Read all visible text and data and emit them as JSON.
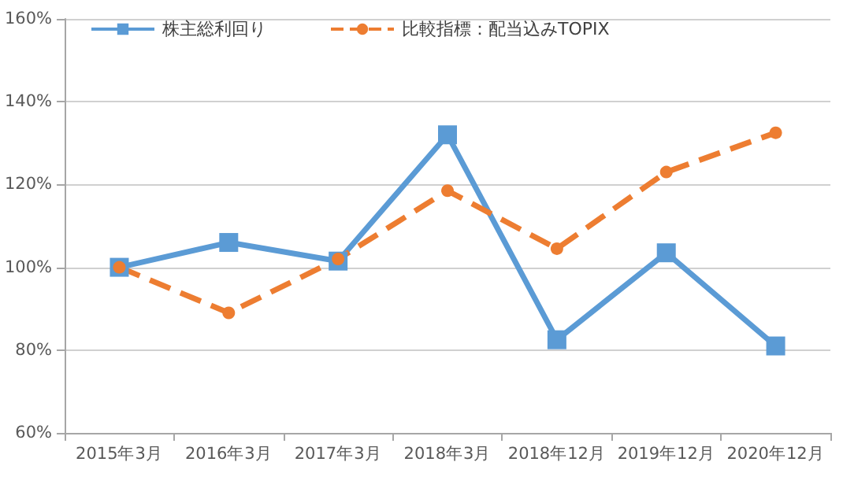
{
  "chart_data": {
    "type": "line",
    "categories": [
      "2015年3月",
      "2016年3月",
      "2017年3月",
      "2018年3月",
      "2018年12月",
      "2019年12月",
      "2020年12月"
    ],
    "series": [
      {
        "name": "株主総利回り",
        "color": "#5b9bd5",
        "marker": "square",
        "line_style": "solid",
        "values": [
          100,
          106,
          101.5,
          132,
          82.5,
          103.5,
          81
        ]
      },
      {
        "name": "比較指標：配当込みTOPIX",
        "color": "#ed7d31",
        "marker": "circle",
        "line_style": "dashed",
        "values": [
          100,
          89,
          102,
          118.5,
          104.5,
          123,
          132.5
        ]
      }
    ],
    "ylim": [
      60,
      160
    ],
    "yticks": [
      {
        "value": 60,
        "label": "60%"
      },
      {
        "value": 80,
        "label": "80%"
      },
      {
        "value": 100,
        "label": "100%"
      },
      {
        "value": 120,
        "label": "120%"
      },
      {
        "value": 140,
        "label": "140%"
      },
      {
        "value": 160,
        "label": "160%"
      }
    ],
    "grid": "y",
    "legend": "top left"
  }
}
